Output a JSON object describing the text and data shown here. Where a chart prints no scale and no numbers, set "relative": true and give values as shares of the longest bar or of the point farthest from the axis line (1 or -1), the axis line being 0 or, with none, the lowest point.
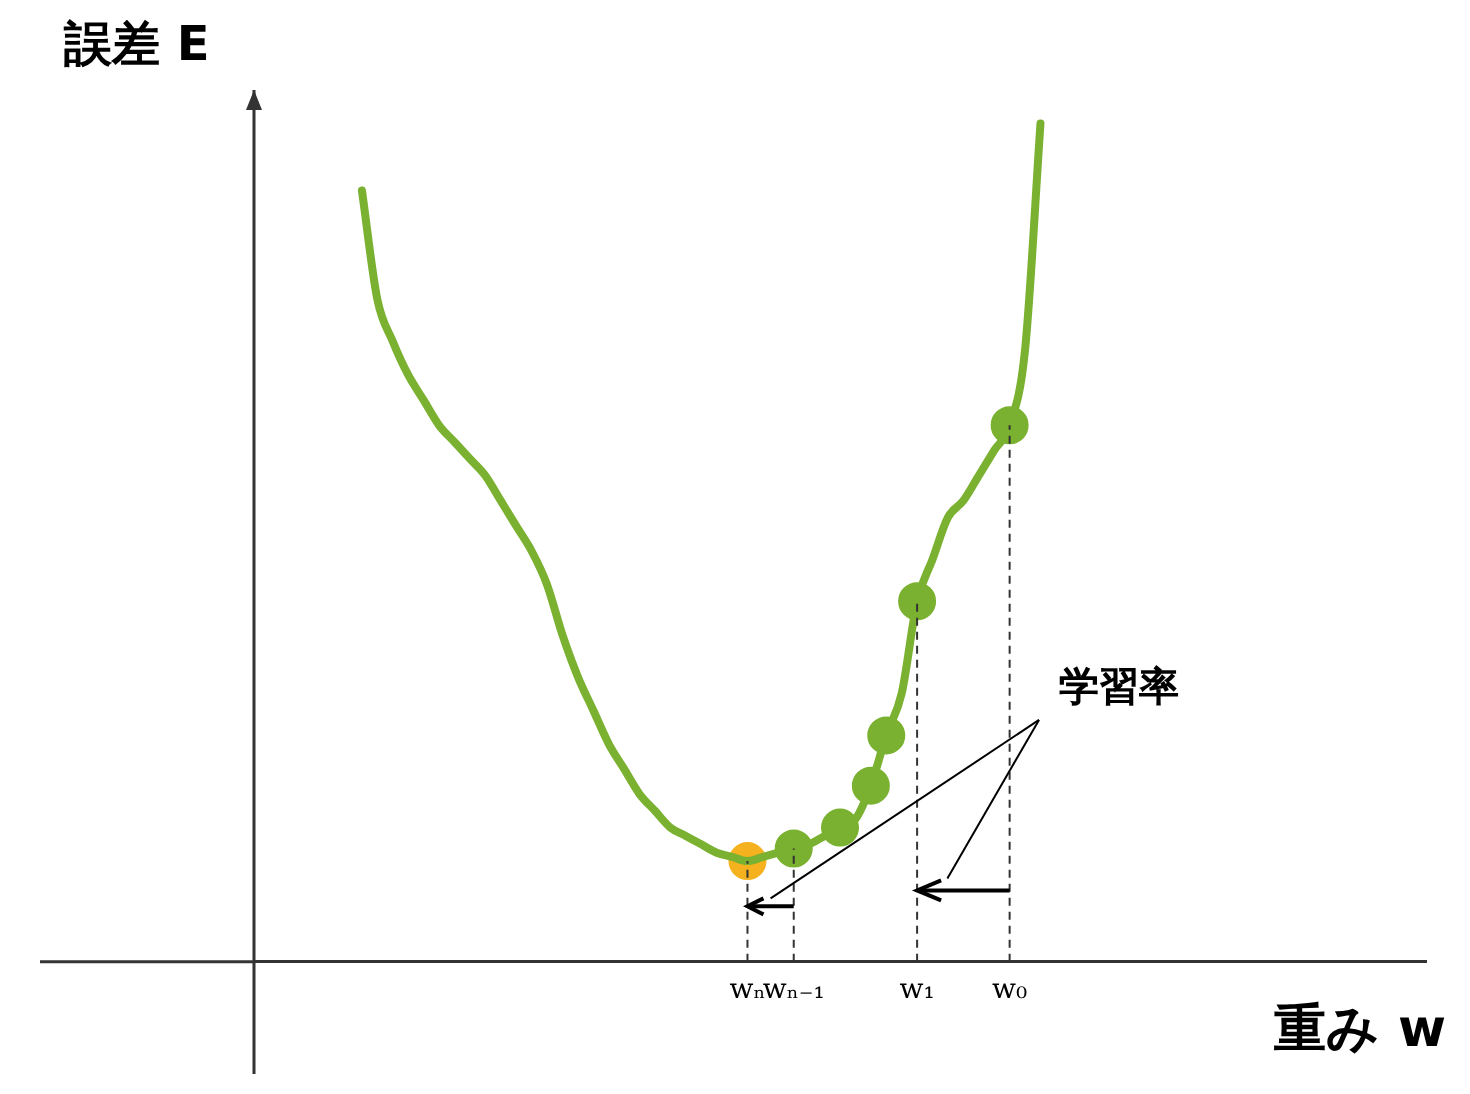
{
  "chart_data": {
    "type": "line",
    "relative": true,
    "xlabel": "重み w",
    "ylabel": "誤差 E",
    "annotations": [
      "学習率"
    ],
    "categories": [
      null,
      null,
      null,
      null,
      null,
      null,
      null,
      null,
      null,
      null,
      null,
      null,
      null,
      null,
      null,
      null,
      null,
      null,
      null,
      null,
      null,
      null,
      null,
      null,
      null,
      null,
      null,
      null,
      null,
      null,
      null,
      null,
      "wₙ",
      null,
      null,
      "wₙ₋₁",
      null,
      null,
      null,
      null,
      null,
      null,
      null,
      "w₁",
      null,
      null,
      null,
      null,
      null,
      "w₀",
      null,
      null,
      null,
      null,
      null,
      null,
      null,
      null,
      null,
      null,
      null,
      null,
      null,
      null,
      null,
      null,
      null,
      null,
      null,
      null,
      null,
      null,
      null,
      null,
      null,
      null,
      null
    ],
    "legend": false,
    "series": [
      {
        "color": "#7ab130",
        "marker": "none",
        "values": [
          null,
          null,
          null,
          null,
          null,
          null,
          null,
          0.92,
          0.79,
          0.74,
          0.7,
          0.67,
          0.64,
          0.62,
          0.6,
          0.58,
          0.55,
          0.52,
          0.49,
          0.45,
          0.39,
          0.34,
          0.3,
          0.26,
          0.23,
          0.2,
          0.18,
          0.16,
          0.15,
          0.14,
          0.13,
          0.125,
          0.12,
          0.125,
          0.13,
          0.135,
          0.14,
          0.15,
          0.16,
          0.17,
          0.21,
          0.27,
          0.32,
          0.43,
          0.48,
          0.53,
          0.55,
          0.58,
          0.61,
          0.64,
          0.73,
          1,
          null,
          null,
          null,
          null,
          null,
          null,
          null,
          null,
          null,
          null,
          null,
          null,
          null,
          null,
          null,
          null,
          null,
          null,
          null,
          null,
          null,
          null,
          null,
          null,
          null
        ]
      },
      {
        "type": "scatter",
        "color": "#f5b21e",
        "marker": "circle",
        "values": [
          null,
          null,
          null,
          null,
          null,
          null,
          null,
          null,
          null,
          null,
          null,
          null,
          null,
          null,
          null,
          null,
          null,
          null,
          null,
          null,
          null,
          null,
          null,
          null,
          null,
          null,
          null,
          null,
          null,
          null,
          null,
          null,
          0.12,
          null,
          null,
          null,
          null,
          null,
          null,
          null,
          null,
          null,
          null,
          null,
          null,
          null,
          null,
          null,
          null,
          null,
          null,
          null,
          null,
          null,
          null,
          null,
          null,
          null,
          null,
          null,
          null,
          null,
          null,
          null,
          null,
          null,
          null,
          null,
          null,
          null,
          null,
          null,
          null,
          null,
          null,
          null,
          null
        ]
      },
      {
        "type": "scatter",
        "color": "#7ab130",
        "marker": "circle",
        "values": [
          null,
          null,
          null,
          null,
          null,
          null,
          null,
          null,
          null,
          null,
          null,
          null,
          null,
          null,
          null,
          null,
          null,
          null,
          null,
          null,
          null,
          null,
          null,
          null,
          null,
          null,
          null,
          null,
          null,
          null,
          null,
          null,
          null,
          null,
          null,
          0.135,
          null,
          null,
          0.16,
          null,
          0.21,
          0.27,
          null,
          0.43,
          null,
          null,
          null,
          null,
          null,
          0.64,
          null,
          null,
          null,
          null,
          null,
          null,
          null,
          null,
          null,
          null,
          null,
          null,
          null,
          null,
          null,
          null,
          null,
          null,
          null,
          null,
          null,
          null,
          null,
          null,
          null,
          null,
          null
        ]
      }
    ]
  }
}
